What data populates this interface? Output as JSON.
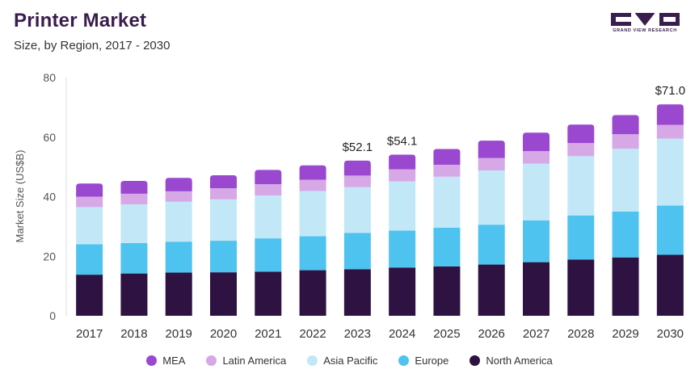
{
  "header": {
    "title": "Printer Market",
    "subtitle": "Size, by Region, 2017 - 2030"
  },
  "logo": {
    "text": "GRAND VIEW RESEARCH"
  },
  "chart_data": {
    "type": "bar",
    "stacked": true,
    "title": "Printer Market",
    "subtitle": "Size, by Region, 2017 - 2030",
    "xlabel": "",
    "ylabel": "Market Size (US$B)",
    "ylim": [
      0,
      80
    ],
    "yticks": [
      0,
      20,
      40,
      60,
      80
    ],
    "grid": false,
    "legend_position": "bottom",
    "categories": [
      "2017",
      "2018",
      "2019",
      "2020",
      "2021",
      "2022",
      "2023",
      "2024",
      "2025",
      "2026",
      "2027",
      "2028",
      "2029",
      "2030"
    ],
    "series": [
      {
        "name": "North America",
        "color": "#2e1242",
        "values": [
          13.8,
          14.2,
          14.5,
          14.6,
          14.8,
          15.3,
          15.6,
          16.2,
          16.6,
          17.2,
          18.0,
          18.9,
          19.6,
          20.5
        ]
      },
      {
        "name": "Europe",
        "color": "#4fc3ef",
        "values": [
          10.2,
          10.2,
          10.4,
          10.6,
          11.2,
          11.4,
          12.2,
          12.4,
          13.0,
          13.4,
          14.0,
          14.8,
          15.4,
          16.5
        ]
      },
      {
        "name": "Asia Pacific",
        "color": "#c2e8f8",
        "values": [
          12.5,
          13.0,
          13.4,
          13.9,
          14.4,
          15.2,
          15.4,
          16.5,
          17.1,
          18.2,
          19.1,
          19.9,
          21.1,
          22.5
        ]
      },
      {
        "name": "Latin America",
        "color": "#d6a8e6",
        "values": [
          3.5,
          3.6,
          3.5,
          3.7,
          3.8,
          3.8,
          3.9,
          4.1,
          4.0,
          4.2,
          4.2,
          4.4,
          4.9,
          4.6
        ]
      },
      {
        "name": "MEA",
        "color": "#9a48d0",
        "values": [
          4.4,
          4.3,
          4.5,
          4.4,
          4.8,
          4.8,
          5.0,
          4.9,
          5.3,
          5.8,
          6.2,
          6.2,
          6.4,
          6.9
        ]
      }
    ],
    "annotations": [
      {
        "category": "2023",
        "label": "$52.1",
        "value": 52.1
      },
      {
        "category": "2024",
        "label": "$54.1",
        "value": 54.1
      },
      {
        "category": "2030",
        "label": "$71.0",
        "value": 71.0
      }
    ],
    "legend": [
      "MEA",
      "Latin America",
      "Asia Pacific",
      "Europe",
      "North America"
    ]
  }
}
